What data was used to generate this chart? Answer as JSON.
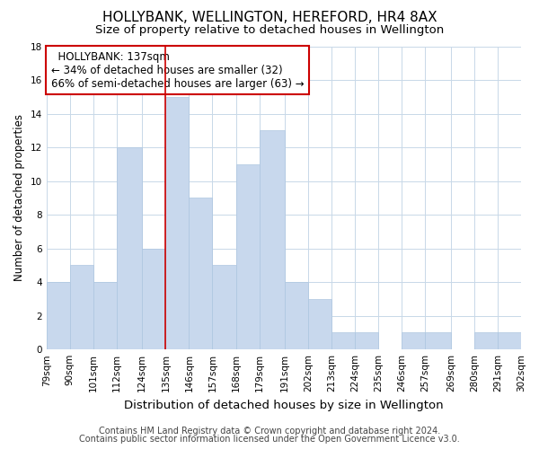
{
  "title": "HOLLYBANK, WELLINGTON, HEREFORD, HR4 8AX",
  "subtitle": "Size of property relative to detached houses in Wellington",
  "xlabel": "Distribution of detached houses by size in Wellington",
  "ylabel": "Number of detached properties",
  "bin_edges": [
    79,
    90,
    101,
    112,
    124,
    135,
    146,
    157,
    168,
    179,
    191,
    202,
    213,
    224,
    235,
    246,
    257,
    269,
    280,
    291,
    302
  ],
  "bin_labels": [
    "79sqm",
    "90sqm",
    "101sqm",
    "112sqm",
    "124sqm",
    "135sqm",
    "146sqm",
    "157sqm",
    "168sqm",
    "179sqm",
    "191sqm",
    "202sqm",
    "213sqm",
    "224sqm",
    "235sqm",
    "246sqm",
    "257sqm",
    "269sqm",
    "280sqm",
    "291sqm",
    "302sqm"
  ],
  "counts": [
    4,
    5,
    4,
    12,
    6,
    15,
    9,
    5,
    11,
    13,
    4,
    3,
    1,
    1,
    0,
    1,
    1,
    0,
    1,
    1
  ],
  "bar_color": "#c8d8ed",
  "bar_edge_color": "#aec6e0",
  "vline_x": 135,
  "vline_color": "#cc0000",
  "annotation_title": "HOLLYBANK: 137sqm",
  "annotation_line1": "← 34% of detached houses are smaller (32)",
  "annotation_line2": "66% of semi-detached houses are larger (63) →",
  "annotation_box_color": "#cc0000",
  "ylim": [
    0,
    18
  ],
  "yticks": [
    0,
    2,
    4,
    6,
    8,
    10,
    12,
    14,
    16,
    18
  ],
  "footer1": "Contains HM Land Registry data © Crown copyright and database right 2024.",
  "footer2": "Contains public sector information licensed under the Open Government Licence v3.0.",
  "bg_color": "#ffffff",
  "grid_color": "#c8d8e8",
  "title_fontsize": 11,
  "subtitle_fontsize": 9.5,
  "xlabel_fontsize": 9.5,
  "ylabel_fontsize": 8.5,
  "tick_fontsize": 7.5,
  "annot_fontsize": 8.5,
  "footer_fontsize": 7
}
